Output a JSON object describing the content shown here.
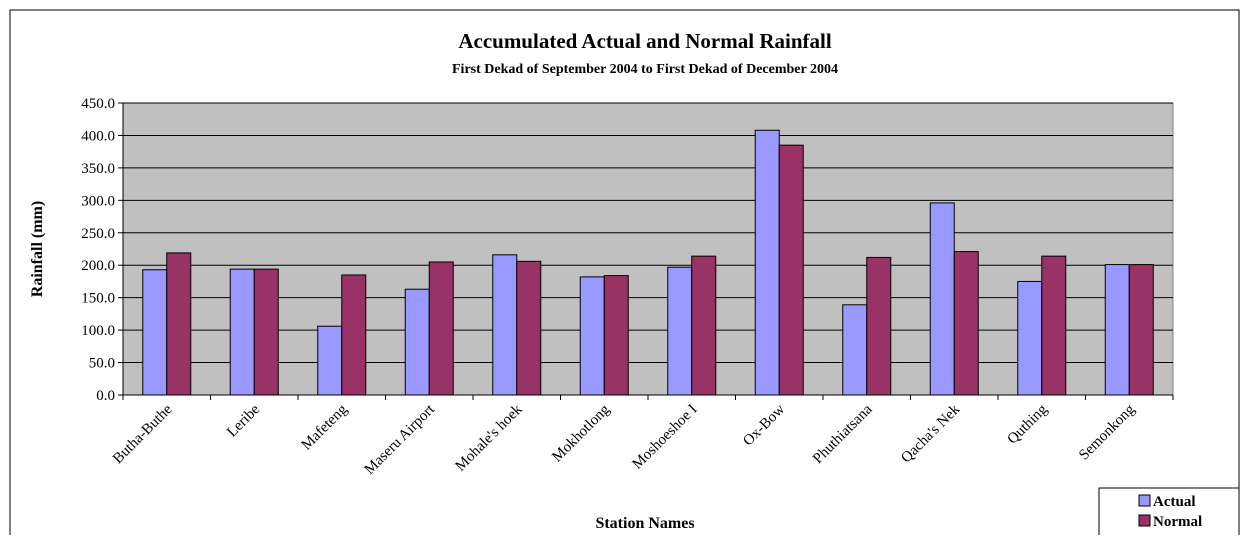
{
  "chart_data": {
    "type": "bar",
    "title": "Accumulated Actual and Normal Rainfall",
    "subtitle": "First Dekad of September 2004 to First Dekad of December 2004",
    "xlabel": "Station Names",
    "ylabel": "Rainfall (mm)",
    "ylim": [
      0,
      450
    ],
    "yticks": [
      "0.0",
      "50.0",
      "100.0",
      "150.0",
      "200.0",
      "250.0",
      "300.0",
      "350.0",
      "400.0",
      "450.0"
    ],
    "grid": true,
    "legend_position": "bottom-right",
    "categories": [
      "Butha-Buthe",
      "Leribe",
      "Mafeteng",
      "Maseru Airport",
      "Mohale's hoek",
      "Mokhotlong",
      "Moshoeshoe I",
      "Ox-Bow",
      "Phuthiatsana",
      "Qacha's Nek",
      "Quthing",
      "Semonkong"
    ],
    "series": [
      {
        "name": "Actual",
        "color": "#9999ff",
        "values": [
          193,
          194,
          106,
          163,
          216,
          182,
          197,
          408,
          139,
          296,
          175,
          201
        ]
      },
      {
        "name": "Normal",
        "color": "#993366",
        "values": [
          219,
          194,
          185,
          205,
          206,
          184,
          214,
          385,
          212,
          221,
          214,
          201
        ]
      }
    ],
    "plot_background": "#c0c0c0"
  }
}
